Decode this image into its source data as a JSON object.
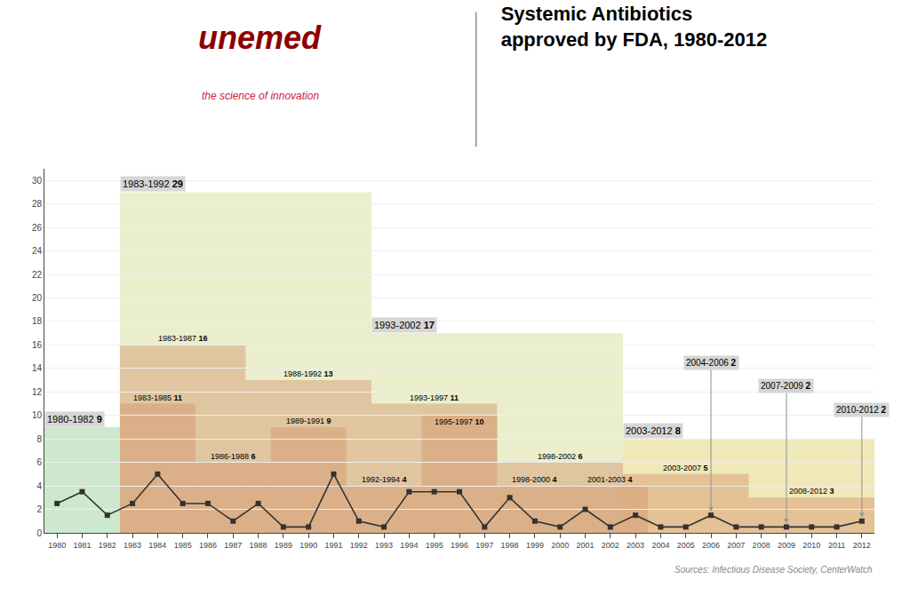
{
  "chart_data": {
    "type": "line",
    "title": "Systemic Antibiotics",
    "subtitle": "approved by FDA, 1980-2012",
    "x": [
      1980,
      1981,
      1982,
      1983,
      1984,
      1985,
      1986,
      1987,
      1988,
      1989,
      1990,
      1991,
      1992,
      1993,
      1994,
      1995,
      1996,
      1997,
      1998,
      1999,
      2000,
      2001,
      2002,
      2003,
      2004,
      2005,
      2006,
      2007,
      2008,
      2009,
      2010,
      2011,
      2012
    ],
    "values": [
      2.5,
      3.5,
      1.5,
      2.5,
      5.0,
      2.5,
      2.5,
      1.0,
      2.5,
      0.5,
      0.5,
      5.0,
      1.0,
      0.5,
      3.5,
      3.5,
      3.5,
      0.5,
      3.0,
      1.0,
      0.5,
      2.0,
      0.5,
      1.5,
      0.5,
      0.5,
      1.5,
      0.5,
      0.5,
      0.5,
      0.5,
      0.5,
      1.0
    ],
    "color": "#333333",
    "marker": "square",
    "xlim": [
      1979.5,
      2012.5
    ],
    "xticks": [
      1980,
      1981,
      1982,
      1983,
      1984,
      1985,
      1986,
      1987,
      1988,
      1989,
      1990,
      1991,
      1992,
      1993,
      1994,
      1995,
      1996,
      1997,
      1998,
      1999,
      2000,
      2001,
      2002,
      2003,
      2004,
      2005,
      2006,
      2007,
      2008,
      2009,
      2010,
      2011,
      2012
    ],
    "ylim": [
      0,
      31
    ],
    "yticks": [
      0,
      2,
      4,
      6,
      8,
      10,
      12,
      14,
      16,
      18,
      20,
      22,
      24,
      26,
      28,
      30
    ],
    "grid": true,
    "decade_blocks": [
      {
        "label": "1980-1982",
        "start": 1980,
        "end": 1983,
        "value": 9,
        "color": "#cde8cd"
      },
      {
        "label": "1983-1992",
        "start": 1983,
        "end": 1993,
        "value": 29,
        "color": "#eaeecc"
      },
      {
        "label": "1993-2002",
        "start": 1993,
        "end": 2003,
        "value": 17,
        "color": "#eaeecc"
      },
      {
        "label": "2003-2012",
        "start": 2003,
        "end": 2013,
        "value": 8,
        "color": "#f0e8b8"
      }
    ],
    "rolling_color": "#d4956a",
    "rolling_blocks": [
      {
        "label": "1983-1987",
        "start": 1983,
        "end": 1988,
        "value": 16
      },
      {
        "label": "1983-1985",
        "start": 1983,
        "end": 1986,
        "value": 11
      },
      {
        "label": "1986-1988",
        "start": 1986,
        "end": 1989,
        "value": 6
      },
      {
        "label": "1988-1992",
        "start": 1988,
        "end": 1993,
        "value": 13
      },
      {
        "label": "1989-1991",
        "start": 1989,
        "end": 1992,
        "value": 9
      },
      {
        "label": "1992-1994",
        "start": 1992,
        "end": 1995,
        "value": 4
      },
      {
        "label": "1993-1997",
        "start": 1993,
        "end": 1998,
        "value": 11
      },
      {
        "label": "1995-1997",
        "start": 1995,
        "end": 1998,
        "value": 10
      },
      {
        "label": "1998-2000",
        "start": 1998,
        "end": 2001,
        "value": 4
      },
      {
        "label": "1998-2002",
        "start": 1998,
        "end": 2003,
        "value": 6
      },
      {
        "label": "2001-2003",
        "start": 2001,
        "end": 2004,
        "value": 4
      },
      {
        "label": "2003-2007",
        "start": 2003,
        "end": 2008,
        "value": 5
      },
      {
        "label": "2008-2012",
        "start": 2008,
        "end": 2013,
        "value": 3
      }
    ],
    "arrow_annotations": [
      {
        "label": "2004-2006",
        "value": 2,
        "x": 2006
      },
      {
        "label": "2007-2009",
        "value": 2,
        "x": 2009
      },
      {
        "label": "2010-2012",
        "value": 2,
        "x": 2012
      }
    ],
    "annotations": [
      {
        "text": "unemed",
        "color": "#8b0000"
      },
      {
        "text": "the science of innovation",
        "color": "#cc2244"
      }
    ],
    "source": "Sources: Infectious Disease Society, CenterWatch"
  }
}
